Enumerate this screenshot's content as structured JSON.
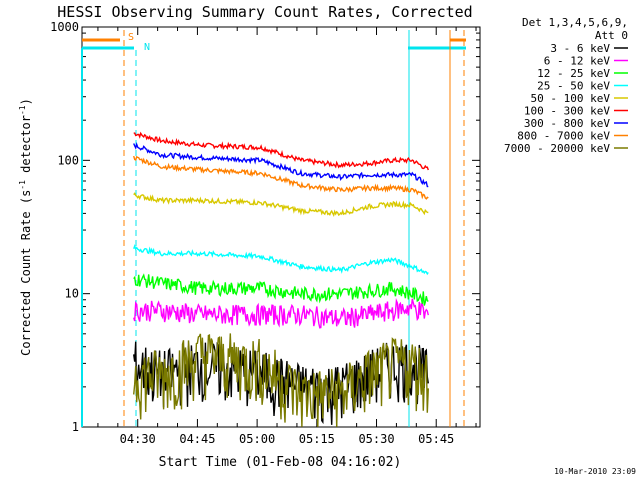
{
  "chart_data": {
    "type": "line",
    "title": "HESSI Observing Summary Count Rates, Corrected",
    "ylabel_main": "Corrected Count Rate (s",
    "ylabel_sup1": "-1",
    "ylabel_mid": " detector",
    "ylabel_sup2": "-1",
    "ylabel_end": ")",
    "xlabel": "Start Time (01-Feb-08 04:16:02)",
    "footer": "10-Mar-2010 23:09",
    "y_scale": "log",
    "y_range": [
      1,
      1000
    ],
    "y_ticks": [
      {
        "value": 1,
        "label": "1"
      },
      {
        "value": 10,
        "label": "10"
      },
      {
        "value": 100,
        "label": "100"
      },
      {
        "value": 1000,
        "label": "1000"
      }
    ],
    "x_range_minutes": [
      0,
      100
    ],
    "x_ticks": [
      {
        "value": 14,
        "label": "04:30"
      },
      {
        "value": 29,
        "label": "04:45"
      },
      {
        "value": 44,
        "label": "05:00"
      },
      {
        "value": 59,
        "label": "05:15"
      },
      {
        "value": 74,
        "label": "05:30"
      },
      {
        "value": 89,
        "label": "05:45"
      }
    ],
    "legend": {
      "header1": "Det 1,3,4,5,6,9,",
      "header2": "Att 0",
      "placement": "right"
    },
    "series": [
      {
        "name": "3 - 6 keV",
        "color": "#000000"
      },
      {
        "name": "6 - 12 keV",
        "color": "#ff00ff"
      },
      {
        "name": "12 - 25 keV",
        "color": "#00ff00"
      },
      {
        "name": "25 - 50 keV",
        "color": "#00ffff"
      },
      {
        "name": "50 - 100 keV",
        "color": "#d8c800"
      },
      {
        "name": "100 - 300 keV",
        "color": "#ff0000"
      },
      {
        "name": "300 - 800 keV",
        "color": "#0000ff"
      },
      {
        "name": "800 - 7000 keV",
        "color": "#ff8000"
      },
      {
        "name": "7000 - 20000 keV",
        "color": "#7a7a00"
      }
    ],
    "flag_labels": [
      "S",
      "N"
    ],
    "mini_levels": [
      {
        "name": "100 - 300 keV",
        "t": [
          13,
          20,
          30,
          45,
          55,
          65,
          72,
          78,
          83,
          87
        ],
        "v": [
          160,
          140,
          130,
          125,
          100,
          92,
          95,
          100,
          100,
          85
        ]
      },
      {
        "name": "300 - 800 keV",
        "t": [
          13,
          20,
          30,
          45,
          55,
          65,
          72,
          78,
          83,
          87
        ],
        "v": [
          130,
          110,
          105,
          100,
          80,
          75,
          78,
          78,
          78,
          65
        ]
      },
      {
        "name": "800 - 7000 keV",
        "t": [
          13,
          20,
          30,
          45,
          55,
          65,
          72,
          78,
          83,
          87
        ],
        "v": [
          105,
          90,
          85,
          80,
          65,
          60,
          62,
          62,
          60,
          52
        ]
      },
      {
        "name": "50 - 100 keV",
        "t": [
          13,
          20,
          30,
          45,
          55,
          65,
          72,
          78,
          83,
          87
        ],
        "v": [
          55,
          50,
          50,
          48,
          42,
          40,
          45,
          47,
          46,
          40
        ]
      },
      {
        "name": "25 - 50 keV",
        "t": [
          13,
          20,
          30,
          45,
          55,
          65,
          72,
          78,
          83,
          87
        ],
        "v": [
          22,
          20,
          20,
          19,
          16,
          15,
          17,
          18,
          16,
          14
        ]
      },
      {
        "name": "12 - 25 keV",
        "t": [
          13,
          20,
          30,
          45,
          55,
          65,
          72,
          78,
          83,
          87
        ],
        "v": [
          13,
          12,
          11,
          11,
          10,
          10,
          10.5,
          11,
          10,
          9
        ]
      },
      {
        "name": "6 - 12 keV",
        "t": [
          13,
          20,
          30,
          45,
          55,
          65,
          72,
          78,
          83,
          87
        ],
        "v": [
          7.5,
          7.5,
          7,
          7,
          7,
          6.5,
          7,
          7.5,
          8,
          7
        ]
      },
      {
        "name": "3 - 6 keV",
        "t": [
          13,
          20,
          30,
          45,
          55,
          65,
          72,
          78,
          83,
          87
        ],
        "v": [
          3,
          2.5,
          3,
          2.5,
          2,
          2,
          2.5,
          3,
          3,
          2.5
        ]
      },
      {
        "name": "7000 - 20000 keV",
        "t": [
          13,
          20,
          30,
          45,
          55,
          65,
          72,
          78,
          83,
          87
        ],
        "v": [
          2.5,
          2.5,
          3.5,
          3,
          1.8,
          1.8,
          2.5,
          3,
          3,
          2.5
        ]
      }
    ]
  }
}
